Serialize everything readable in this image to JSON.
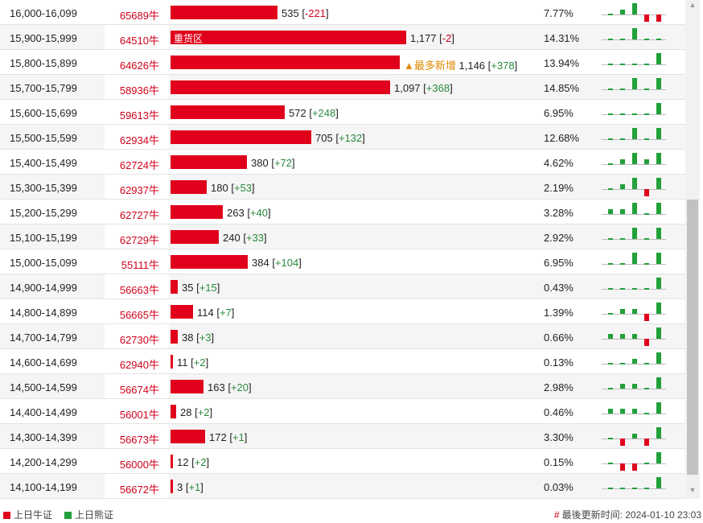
{
  "colors": {
    "bull": "#e0001b",
    "bear": "#22a03a",
    "hot": "#e08a00"
  },
  "rows": [
    {
      "range": "16,000-16,099",
      "code": "65689牛",
      "bar": 535,
      "value": "535",
      "change": "-221",
      "pct": "7.77%",
      "spark": [
        0,
        1,
        2,
        -1,
        -1
      ]
    },
    {
      "range": "15,900-15,999",
      "code": "64510牛",
      "bar": 1177,
      "bar_label": "重货区",
      "value": "1,177",
      "change": "-2",
      "pct": "14.31%",
      "spark": [
        0,
        0,
        1,
        0,
        0
      ]
    },
    {
      "range": "15,800-15,899",
      "code": "64626牛",
      "bar": 1146,
      "hot": "▲最多新增",
      "value": "1,146",
      "change": "+378",
      "pct": "13.94%",
      "spark": [
        0,
        0,
        0,
        0,
        1
      ]
    },
    {
      "range": "15,700-15,799",
      "code": "58936牛",
      "bar": 1097,
      "value": "1,097",
      "change": "+368",
      "pct": "14.85%",
      "spark": [
        0,
        0,
        1,
        0,
        1
      ]
    },
    {
      "range": "15,600-15,699",
      "code": "59613牛",
      "bar": 572,
      "value": "572",
      "change": "+248",
      "pct": "6.95%",
      "spark": [
        0,
        0,
        0,
        0,
        1
      ]
    },
    {
      "range": "15,500-15,599",
      "code": "62934牛",
      "bar": 705,
      "value": "705",
      "change": "+132",
      "pct": "12.68%",
      "spark": [
        0,
        0,
        1,
        0,
        1
      ]
    },
    {
      "range": "15,400-15,499",
      "code": "62724牛",
      "bar": 380,
      "value": "380",
      "change": "+72",
      "pct": "4.62%",
      "spark": [
        0,
        1,
        1,
        1,
        1
      ]
    },
    {
      "range": "15,300-15,399",
      "code": "62937牛",
      "bar": 180,
      "value": "180",
      "change": "+53",
      "pct": "2.19%",
      "spark": [
        0,
        1,
        1,
        -1,
        1
      ]
    },
    {
      "range": "15,200-15,299",
      "code": "62727牛",
      "bar": 263,
      "value": "263",
      "change": "+40",
      "pct": "3.28%",
      "spark": [
        1,
        1,
        1,
        0,
        1
      ]
    },
    {
      "range": "15,100-15,199",
      "code": "62729牛",
      "bar": 240,
      "value": "240",
      "change": "+33",
      "pct": "2.92%",
      "spark": [
        0,
        0,
        1,
        0,
        1
      ]
    },
    {
      "range": "15,000-15,099",
      "code": "55111牛",
      "bar": 384,
      "value": "384",
      "change": "+104",
      "pct": "6.95%",
      "spark": [
        0,
        0,
        1,
        0,
        1
      ]
    },
    {
      "range": "14,900-14,999",
      "code": "56663牛",
      "bar": 35,
      "value": "35",
      "change": "+15",
      "pct": "0.43%",
      "spark": [
        0,
        0,
        0,
        0,
        1
      ]
    },
    {
      "range": "14,800-14,899",
      "code": "56665牛",
      "bar": 114,
      "value": "114",
      "change": "+7",
      "pct": "1.39%",
      "spark": [
        0,
        1,
        1,
        -1,
        1
      ]
    },
    {
      "range": "14,700-14,799",
      "code": "62730牛",
      "bar": 38,
      "value": "38",
      "change": "+3",
      "pct": "0.66%",
      "spark": [
        1,
        1,
        1,
        -1,
        1
      ]
    },
    {
      "range": "14,600-14,699",
      "code": "62940牛",
      "bar": 11,
      "value": "11",
      "change": "+2",
      "pct": "0.13%",
      "spark": [
        0,
        0,
        1,
        0,
        1
      ]
    },
    {
      "range": "14,500-14,599",
      "code": "56674牛",
      "bar": 163,
      "value": "163",
      "change": "+20",
      "pct": "2.98%",
      "spark": [
        0,
        1,
        1,
        0,
        1
      ]
    },
    {
      "range": "14,400-14,499",
      "code": "56001牛",
      "bar": 28,
      "value": "28",
      "change": "+2",
      "pct": "0.46%",
      "spark": [
        1,
        1,
        1,
        0,
        1
      ]
    },
    {
      "range": "14,300-14,399",
      "code": "56673牛",
      "bar": 172,
      "value": "172",
      "change": "+1",
      "pct": "3.30%",
      "spark": [
        0,
        -1,
        1,
        -1,
        1
      ]
    },
    {
      "range": "14,200-14,299",
      "code": "56000牛",
      "bar": 12,
      "value": "12",
      "change": "+2",
      "pct": "0.15%",
      "spark": [
        0,
        -1,
        -1,
        0,
        1
      ]
    },
    {
      "range": "14,100-14,199",
      "code": "56672牛",
      "bar": 3,
      "value": "3",
      "change": "+1",
      "pct": "0.03%",
      "spark": [
        0,
        0,
        0,
        0,
        1
      ]
    }
  ],
  "footer": {
    "legend_bull": "上日牛证",
    "legend_bear": "上日熊证",
    "update_mark": "#",
    "update_label": "最後更新时间:",
    "update_time": "2024-01-10 23:03"
  },
  "scrollbar": {
    "up_icon": "▲",
    "down_icon": "▼"
  }
}
